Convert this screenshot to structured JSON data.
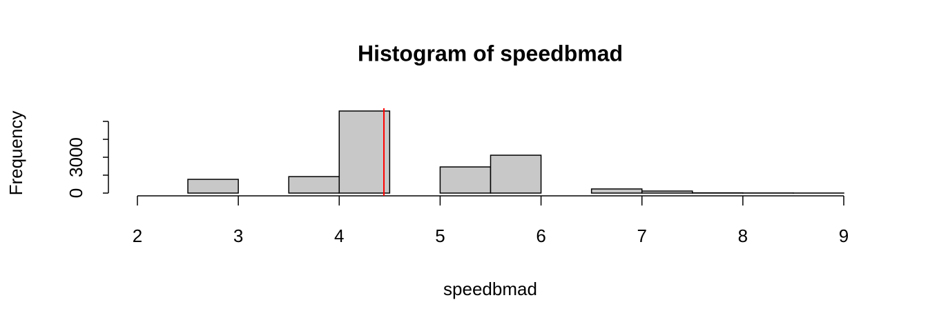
{
  "chart_data": {
    "type": "histogram",
    "title": "Histogram of speedbmad",
    "x_label": "speedbmad",
    "y_label": "Frequency",
    "bins": [
      2,
      2.5,
      3,
      3.5,
      4,
      4.5,
      5,
      5.5,
      6,
      6.5,
      7,
      7.5,
      8,
      8.5,
      9
    ],
    "counts": [
      0,
      1150,
      0,
      1380,
      6870,
      0,
      2190,
      3170,
      0,
      346,
      170,
      20,
      10,
      5
    ],
    "color": "#c8c8c8",
    "edge_color": "#000000",
    "xlim": [
      2,
      9
    ],
    "xticks": [
      2,
      3,
      4,
      5,
      6,
      7,
      8,
      9
    ],
    "ylim": [
      0,
      7100
    ],
    "yticks": [
      0,
      3000
    ],
    "yticks_unlabeled": [
      1500,
      4500,
      6000
    ],
    "vline": 4.443,
    "vline_color": "#ff0000"
  }
}
